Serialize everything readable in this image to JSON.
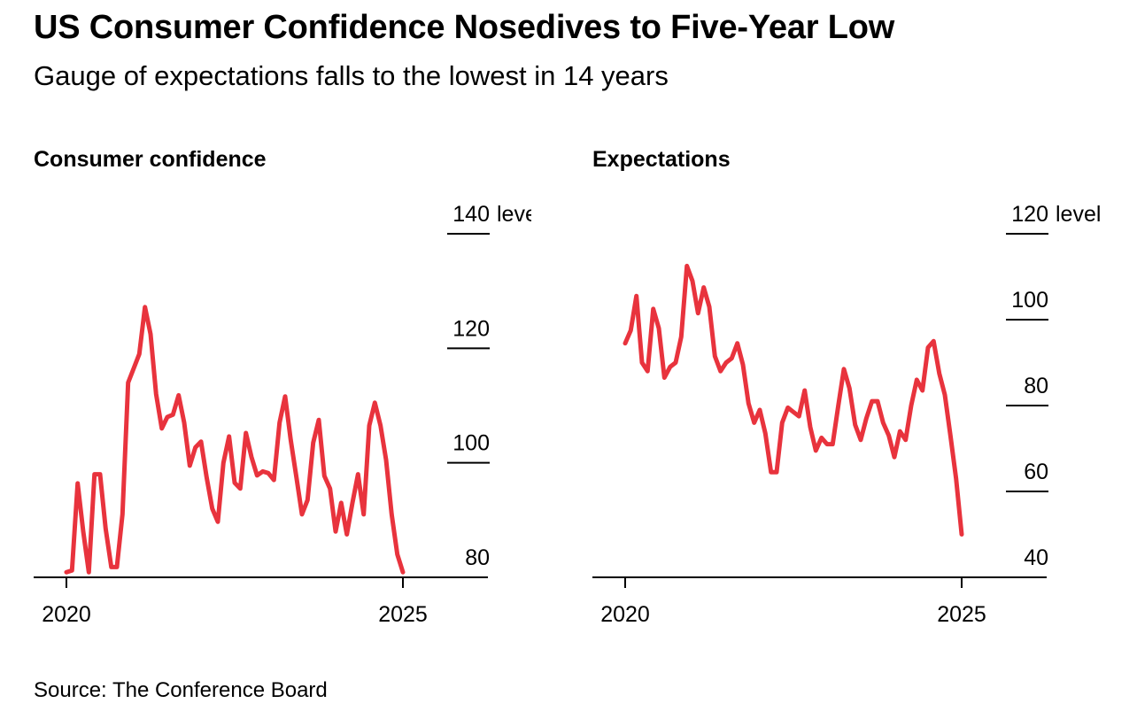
{
  "title": "US Consumer Confidence Nosedives to Five-Year Low",
  "subtitle": "Gauge of expectations falls to the lowest in 14 years",
  "source": "Source: The Conference Board",
  "colors": {
    "line": "#e8333d",
    "axis": "#000000"
  },
  "chart_data": [
    {
      "type": "line",
      "title": "Consumer confidence",
      "unit_label": "level",
      "x_ticks": [
        "2020",
        "2025"
      ],
      "y_ticks": [
        80,
        100,
        120,
        140
      ],
      "xlim": [
        2020.0,
        2026.25
      ],
      "ylim": [
        80,
        140
      ],
      "grid": false,
      "series": [
        {
          "x": [
            2020.0,
            2020.083,
            2020.167,
            2020.25,
            2020.333,
            2020.417,
            2020.5,
            2020.583,
            2020.667,
            2020.75,
            2020.833,
            2020.917,
            2021.0,
            2021.083,
            2021.167,
            2021.25,
            2021.333,
            2021.417,
            2021.5,
            2021.583,
            2021.667,
            2021.75,
            2021.833,
            2021.917,
            2022.0,
            2022.083,
            2022.167,
            2022.25,
            2022.333,
            2022.417,
            2022.5,
            2022.583,
            2022.667,
            2022.75,
            2022.833,
            2022.917,
            2023.0,
            2023.083,
            2023.167,
            2023.25,
            2023.333,
            2023.417,
            2023.5,
            2023.583,
            2023.667,
            2023.75,
            2023.833,
            2023.917,
            2024.0,
            2024.083,
            2024.167,
            2024.25,
            2024.333,
            2024.417,
            2024.5,
            2024.583,
            2024.667,
            2024.75,
            2024.833,
            2024.917,
            2025.0
          ],
          "y": [
            80.9,
            81.2,
            96.4,
            88.0,
            80.9,
            98.0,
            98.0,
            88.5,
            81.8,
            81.8,
            91.0,
            114.0,
            116.5,
            119.0,
            127.2,
            122.5,
            112.0,
            106.0,
            108.0,
            108.4,
            111.8,
            107.0,
            99.5,
            102.7,
            103.7,
            97.5,
            92.0,
            89.7,
            100.0,
            104.6,
            96.5,
            95.5,
            105.2,
            101.0,
            97.8,
            98.5,
            98.2,
            97.0,
            107.0,
            111.6,
            104.0,
            97.5,
            91.0,
            93.5,
            103.5,
            107.5,
            97.7,
            95.5,
            88.0,
            93.0,
            87.5,
            93.0,
            98.0,
            91.0,
            106.5,
            110.5,
            106.5,
            100.5,
            91.0,
            84.0,
            80.9
          ]
        }
      ]
    },
    {
      "type": "line",
      "title": "Expectations",
      "unit_label": "level",
      "x_ticks": [
        "2020",
        "2025"
      ],
      "y_ticks": [
        40,
        60,
        80,
        100,
        120
      ],
      "xlim": [
        2020.0,
        2026.25
      ],
      "ylim": [
        40,
        120
      ],
      "grid": false,
      "series": [
        {
          "x": [
            2020.0,
            2020.083,
            2020.167,
            2020.25,
            2020.333,
            2020.417,
            2020.5,
            2020.583,
            2020.667,
            2020.75,
            2020.833,
            2020.917,
            2021.0,
            2021.083,
            2021.167,
            2021.25,
            2021.333,
            2021.417,
            2021.5,
            2021.583,
            2021.667,
            2021.75,
            2021.833,
            2021.917,
            2022.0,
            2022.083,
            2022.167,
            2022.25,
            2022.333,
            2022.417,
            2022.5,
            2022.583,
            2022.667,
            2022.75,
            2022.833,
            2022.917,
            2023.0,
            2023.083,
            2023.167,
            2023.25,
            2023.333,
            2023.417,
            2023.5,
            2023.583,
            2023.667,
            2023.75,
            2023.833,
            2023.917,
            2024.0,
            2024.083,
            2024.167,
            2024.25,
            2024.333,
            2024.417,
            2024.5,
            2024.583,
            2024.667,
            2024.75,
            2024.833,
            2024.917,
            2025.0
          ],
          "y": [
            94.5,
            97.5,
            105.5,
            90.0,
            88.0,
            102.5,
            98.0,
            86.5,
            89.0,
            90.0,
            96.0,
            112.5,
            109.0,
            101.5,
            107.5,
            103.0,
            91.5,
            88.0,
            90.0,
            91.0,
            94.5,
            89.5,
            80.5,
            76.0,
            79.0,
            73.5,
            64.5,
            64.5,
            76.0,
            79.5,
            78.5,
            77.5,
            83.5,
            75.0,
            69.5,
            72.5,
            71.0,
            71.0,
            80.0,
            88.5,
            84.0,
            75.5,
            72.0,
            77.0,
            81.0,
            81.0,
            76.0,
            73.0,
            68.0,
            74.0,
            72.0,
            80.0,
            86.0,
            83.5,
            93.5,
            95.0,
            87.5,
            82.5,
            73.0,
            63.0,
            50.0
          ]
        }
      ]
    }
  ]
}
